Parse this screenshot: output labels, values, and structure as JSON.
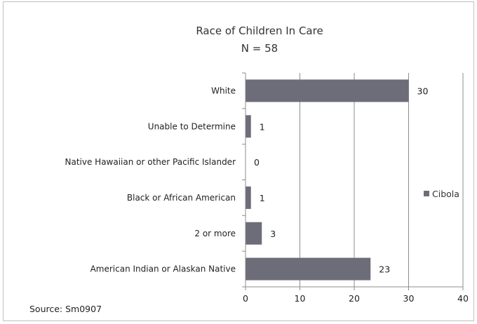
{
  "chart_data": {
    "type": "bar",
    "orientation": "horizontal",
    "title": "Race of Children In Care",
    "subtitle": "N = 58",
    "categories": [
      "White",
      "Unable to Determine",
      "Native Hawaiian or other Pacific Islander",
      "Black or African American",
      "2 or more",
      "American Indian or Alaskan Native"
    ],
    "series": [
      {
        "name": "Cibola",
        "values": [
          30,
          1,
          0,
          1,
          3,
          23
        ],
        "color": "#6d6d7a"
      }
    ],
    "xlim": [
      0,
      40
    ],
    "xticks": [
      "0",
      "10",
      "20",
      "30",
      "40"
    ],
    "grid": true,
    "legend": "right",
    "source": "Source: Sm0907"
  }
}
